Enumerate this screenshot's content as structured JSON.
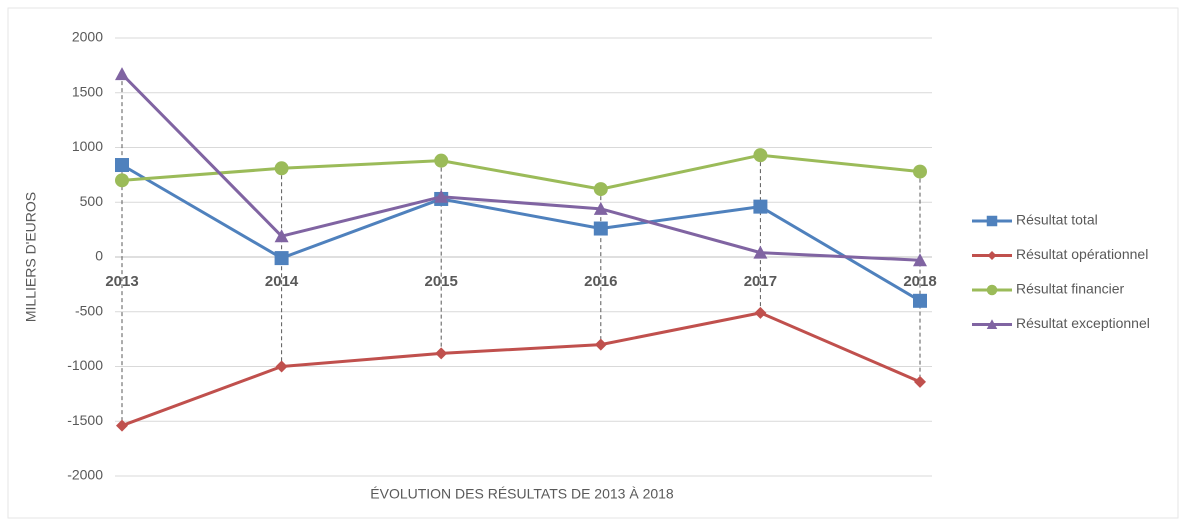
{
  "chart_data": {
    "type": "line",
    "x_label": "ÉVOLUTION DES RÉSULTATS DE 2013 À 2018",
    "y_label": "MILLIERS D'EUROS",
    "categories": [
      "2013",
      "2014",
      "2015",
      "2016",
      "2017",
      "2018"
    ],
    "series": [
      {
        "name": "Résultat total",
        "color": "#4f81bd",
        "marker": "square",
        "values": [
          840,
          -10,
          530,
          260,
          460,
          -400
        ]
      },
      {
        "name": "Résultat opérationnel",
        "color": "#c0504d",
        "marker": "diamond",
        "values": [
          -1540,
          -1000,
          -880,
          -800,
          -510,
          -1140
        ]
      },
      {
        "name": "Résultat financier",
        "color": "#9bbb59",
        "marker": "circle",
        "values": [
          700,
          810,
          880,
          620,
          930,
          780
        ]
      },
      {
        "name": "Résultat exceptionnel",
        "color": "#8064a2",
        "marker": "triangle",
        "values": [
          1670,
          190,
          550,
          440,
          40,
          -30
        ]
      }
    ],
    "ylim": [
      -2000,
      2000
    ],
    "yticks": [
      -2000,
      -1500,
      -1000,
      -500,
      0,
      500,
      1000,
      1500,
      2000
    ],
    "grid": true,
    "high_low_lines": true,
    "legend": "right"
  }
}
